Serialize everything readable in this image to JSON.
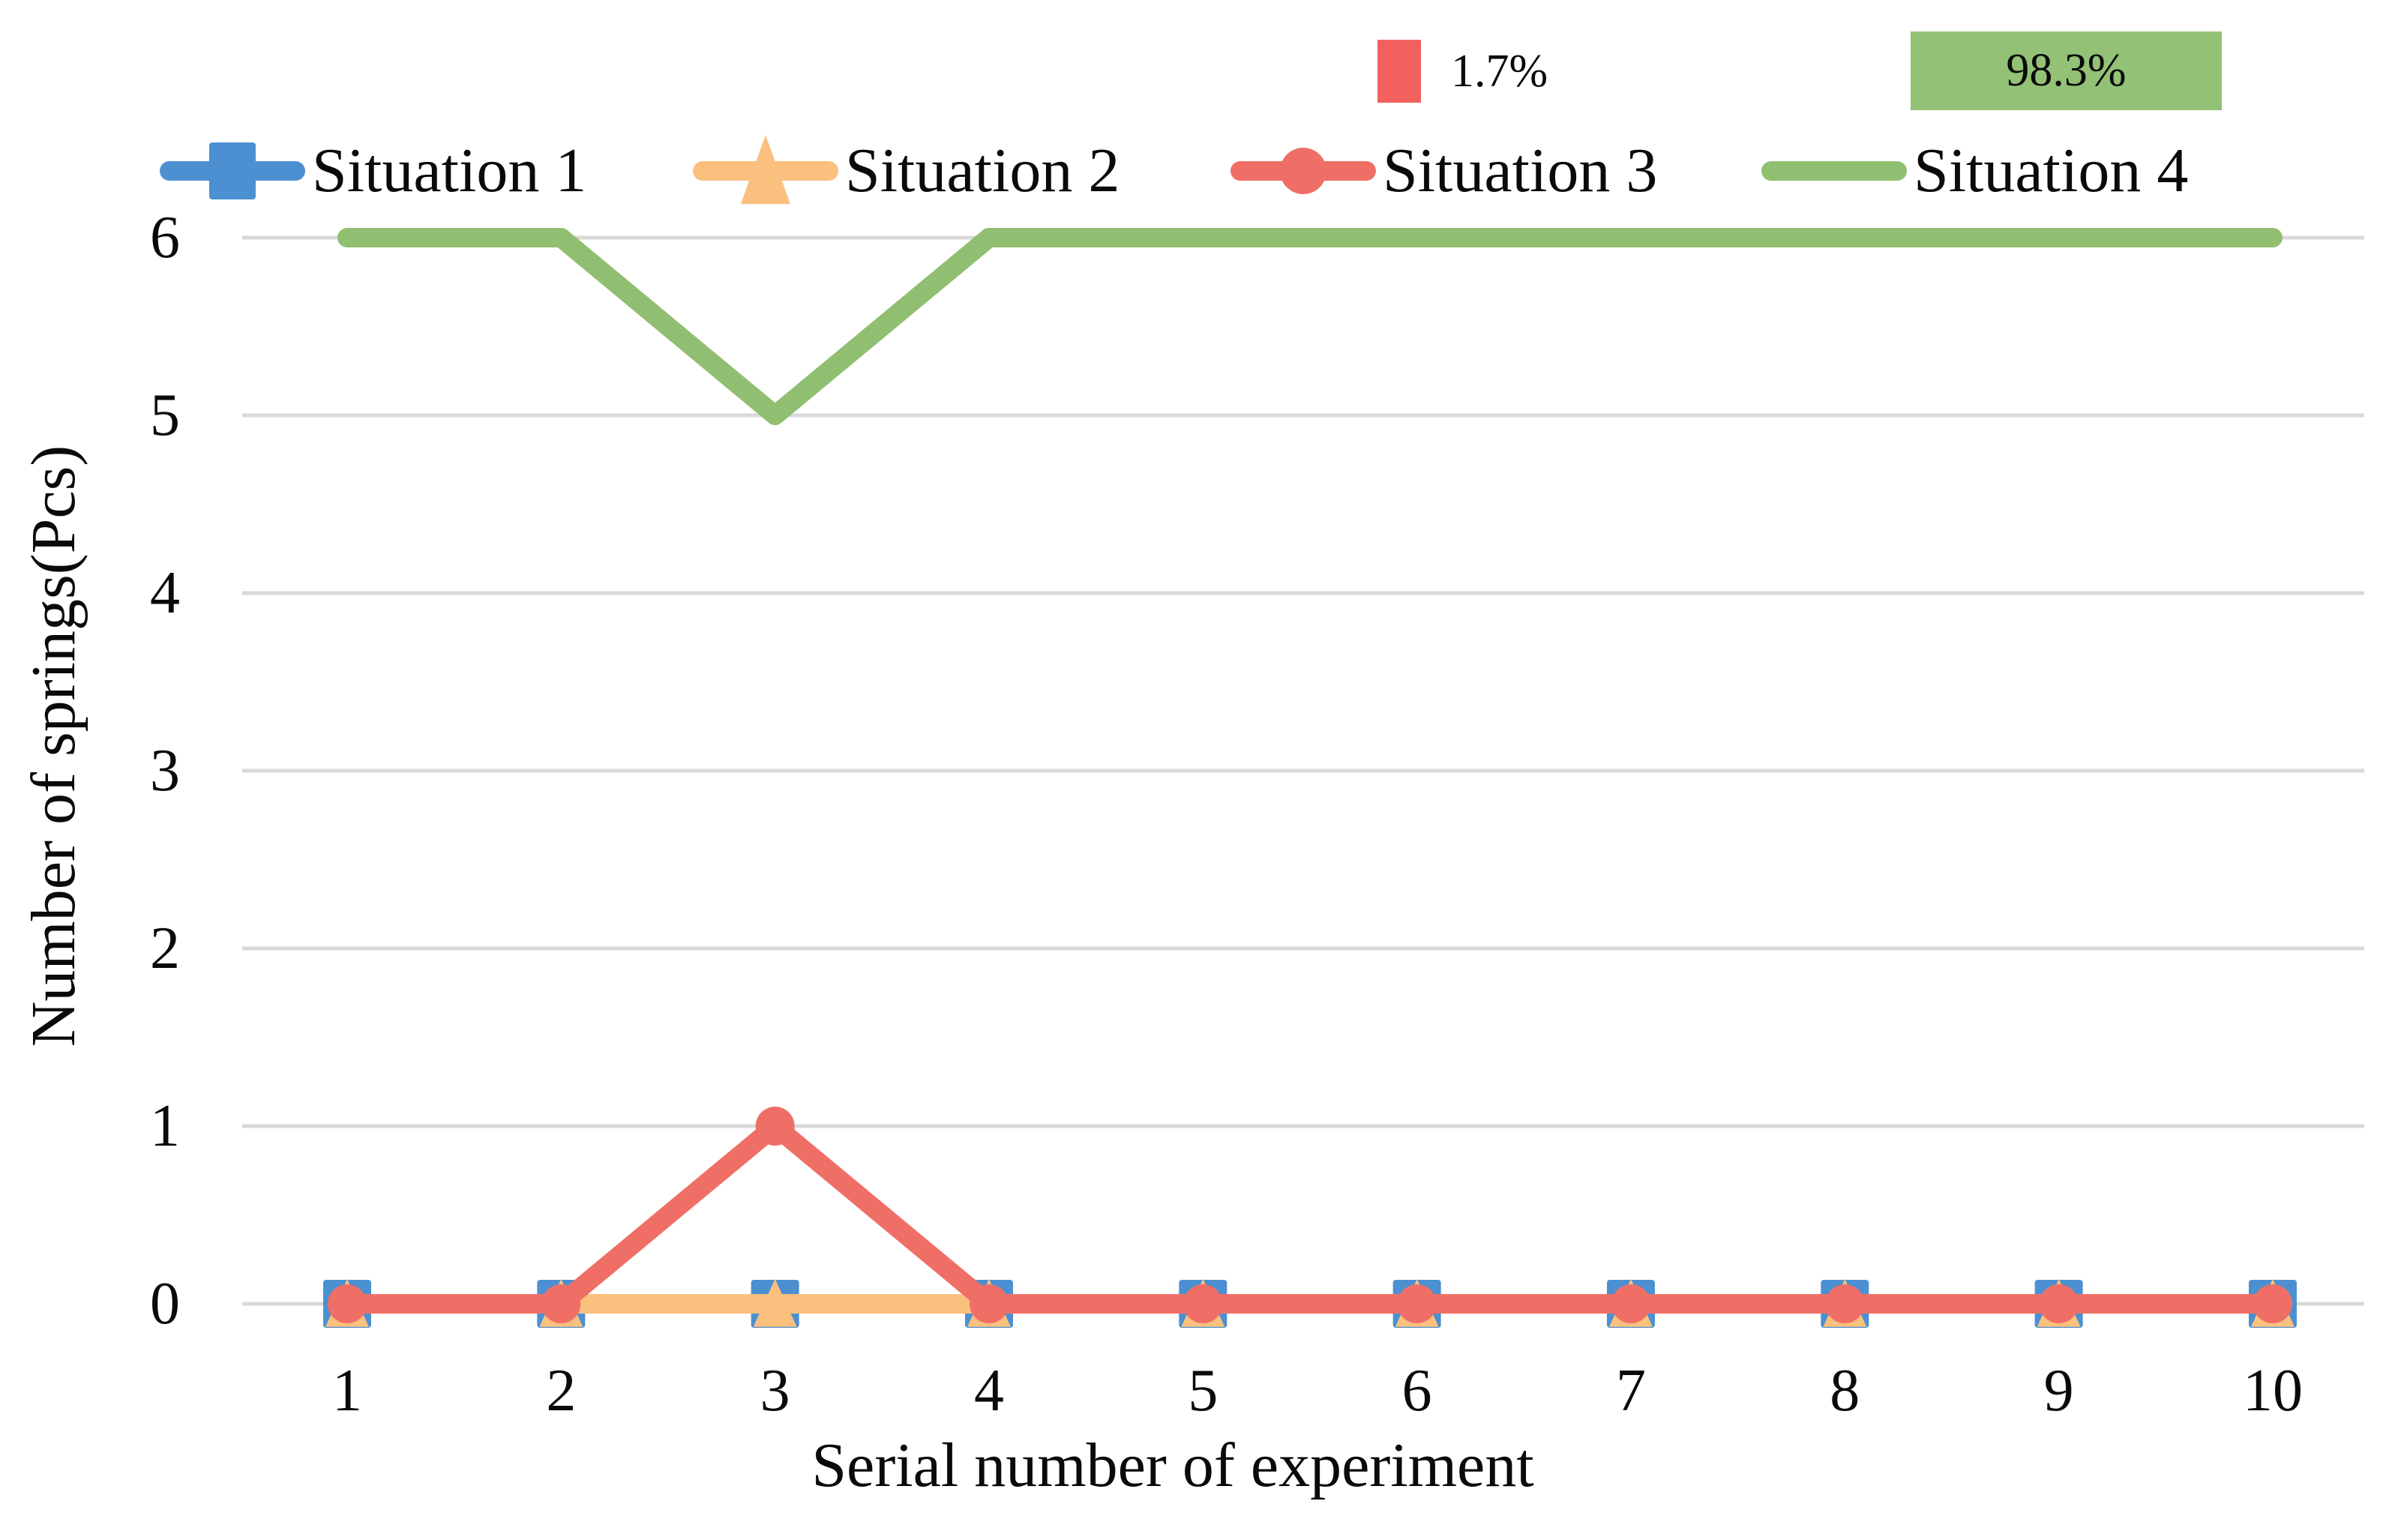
{
  "figure": {
    "background": "#ffffff",
    "text_color": "#0a0a0a"
  },
  "annotations": {
    "red": {
      "label": "1.7%",
      "color": "#f2615e"
    },
    "green": {
      "label": "98.3%",
      "color": "#93c175",
      "text_color": "#0a0a0a"
    }
  },
  "chart_data": {
    "type": "line",
    "title": "",
    "xlabel": "Serial number of experiment",
    "ylabel": "Number of springs(Pcs)",
    "categories": [
      1,
      2,
      3,
      4,
      5,
      6,
      7,
      8,
      9,
      10
    ],
    "yticks_top_to_bottom": [
      6,
      5,
      4,
      3,
      2,
      1,
      0
    ],
    "ylim": [
      0,
      6
    ],
    "grid": "horizontal",
    "gridline_color": "#d9d9d9",
    "legend_position": "top",
    "series": [
      {
        "name": "Situation 1",
        "color": "#4c90d2",
        "marker": "square",
        "values": [
          0,
          0,
          0,
          0,
          0,
          0,
          0,
          0,
          0,
          0
        ]
      },
      {
        "name": "Situation 2",
        "color": "#fac07d",
        "marker": "triangle",
        "values": [
          0,
          0,
          0,
          0,
          0,
          0,
          0,
          0,
          0,
          0
        ]
      },
      {
        "name": "Situation 3",
        "color": "#ef6f66",
        "marker": "circle",
        "values": [
          0,
          0,
          1,
          0,
          0,
          0,
          0,
          0,
          0,
          0
        ]
      },
      {
        "name": "Situation 4",
        "color": "#90bf72",
        "marker": "none",
        "values": [
          6,
          6,
          5,
          6,
          6,
          6,
          6,
          6,
          6,
          6
        ]
      }
    ]
  }
}
